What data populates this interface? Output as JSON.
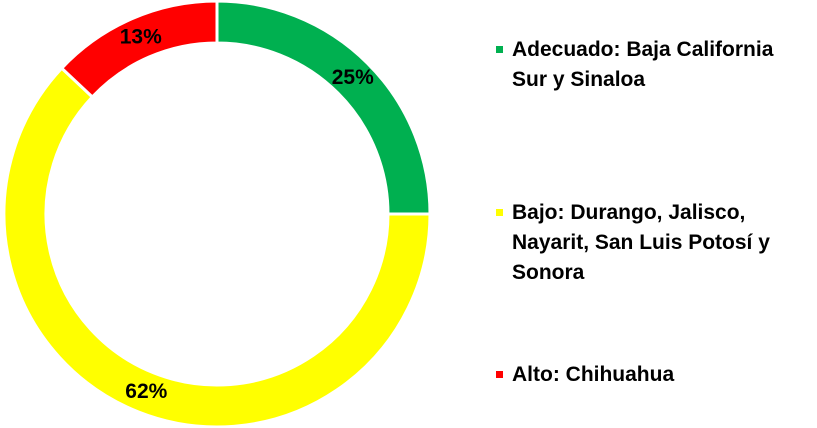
{
  "chart_data": {
    "type": "donut",
    "categories": [
      "Adecuado: Baja California Sur y Sinaloa",
      "Bajo: Durango, Jalisco, Nayarit, San Luis Potosí y Sonora",
      "Alto: Chihuahua"
    ],
    "values": [
      25,
      62,
      13
    ],
    "value_labels": [
      "25%",
      "62%",
      "13%"
    ],
    "colors": [
      "#00b050",
      "#ffff00",
      "#ff0000"
    ],
    "legend": "right"
  }
}
